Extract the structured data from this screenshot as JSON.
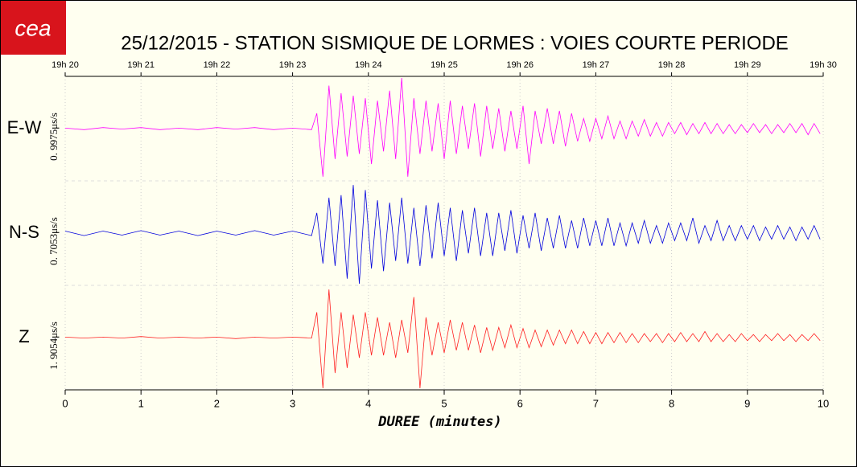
{
  "logo": "cea",
  "chart_data": {
    "type": "line",
    "title": "25/12/2015  -  STATION SISMIQUE DE LORMES : VOIES COURTE PERIODE",
    "xlabel": "DUREE (minutes)",
    "xlim": [
      0,
      10
    ],
    "xticks": [
      0,
      1,
      2,
      3,
      4,
      5,
      6,
      7,
      8,
      9,
      10
    ],
    "x2ticks": [
      {
        "value": 0,
        "label": "19h 20"
      },
      {
        "value": 1,
        "label": "19h 21"
      },
      {
        "value": 2,
        "label": "19h 22"
      },
      {
        "value": 3,
        "label": "19h 23"
      },
      {
        "value": 4,
        "label": "19h 24"
      },
      {
        "value": 5,
        "label": "19h 25"
      },
      {
        "value": 6,
        "label": "19h 26"
      },
      {
        "value": 7,
        "label": "19h 27"
      },
      {
        "value": 8,
        "label": "19h 28"
      },
      {
        "value": 9,
        "label": "19h 29"
      },
      {
        "value": 10,
        "label": "19h 30"
      }
    ],
    "ylim": [
      -1,
      1
    ],
    "grid": true,
    "x": [
      0,
      0.25,
      0.5,
      0.75,
      1,
      1.25,
      1.5,
      1.75,
      2,
      2.25,
      2.5,
      2.75,
      3,
      3.25,
      3.32,
      3.4,
      3.48,
      3.56,
      3.64,
      3.72,
      3.8,
      3.88,
      3.96,
      4.04,
      4.12,
      4.2,
      4.28,
      4.36,
      4.44,
      4.52,
      4.6,
      4.68,
      4.76,
      4.84,
      4.92,
      5,
      5.08,
      5.16,
      5.24,
      5.32,
      5.4,
      5.48,
      5.56,
      5.64,
      5.72,
      5.8,
      5.88,
      5.96,
      6.04,
      6.12,
      6.2,
      6.28,
      6.36,
      6.44,
      6.52,
      6.6,
      6.68,
      6.76,
      6.84,
      6.92,
      7,
      7.08,
      7.16,
      7.24,
      7.32,
      7.4,
      7.48,
      7.56,
      7.64,
      7.72,
      7.8,
      7.88,
      7.96,
      8.04,
      8.12,
      8.2,
      8.28,
      8.36,
      8.44,
      8.52,
      8.6,
      8.68,
      8.76,
      8.84,
      8.92,
      9,
      9.08,
      9.16,
      9.24,
      9.32,
      9.4,
      9.48,
      9.56,
      9.64,
      9.72,
      9.8,
      9.88,
      9.96
    ],
    "series": [
      {
        "name": "E-W",
        "scale": "0. 9975μs/s",
        "color": "#ff00ff",
        "values": [
          0.01,
          -0.02,
          0.02,
          -0.01,
          0.02,
          -0.02,
          0.01,
          -0.02,
          0.02,
          -0.01,
          0.02,
          -0.02,
          0.01,
          -0.02,
          0.3,
          -0.95,
          0.85,
          -0.6,
          0.7,
          -0.55,
          0.65,
          -0.5,
          0.6,
          -0.7,
          0.55,
          -0.45,
          0.75,
          -0.6,
          1.0,
          -0.95,
          0.6,
          -0.5,
          0.55,
          -0.45,
          0.5,
          -0.6,
          0.55,
          -0.5,
          0.45,
          -0.4,
          0.5,
          -0.55,
          0.45,
          -0.4,
          0.4,
          -0.45,
          0.35,
          -0.4,
          0.45,
          -0.7,
          0.35,
          -0.3,
          0.4,
          -0.3,
          0.35,
          -0.35,
          0.3,
          -0.25,
          0.2,
          -0.25,
          0.2,
          -0.2,
          0.25,
          -0.2,
          0.15,
          -0.2,
          0.15,
          -0.15,
          0.18,
          -0.15,
          0.12,
          -0.15,
          0.12,
          -0.1,
          0.12,
          -0.12,
          0.1,
          -0.1,
          0.12,
          -0.1,
          0.1,
          -0.1,
          0.08,
          -0.1,
          0.08,
          -0.08,
          0.1,
          -0.08,
          0.08,
          -0.1,
          0.08,
          -0.08,
          0.1,
          -0.08,
          0.1,
          -0.12,
          0.1,
          -0.1
        ]
      },
      {
        "name": "N-S",
        "scale": "0. 7053μs/s",
        "color": "#0000dd",
        "values": [
          0.04,
          -0.05,
          0.04,
          -0.04,
          0.05,
          -0.04,
          0.04,
          -0.05,
          0.04,
          -0.04,
          0.05,
          -0.04,
          0.04,
          -0.05,
          0.4,
          -0.6,
          0.7,
          -0.65,
          0.75,
          -0.9,
          0.95,
          -1.0,
          0.85,
          -0.7,
          0.65,
          -0.75,
          0.6,
          -0.55,
          0.7,
          -0.6,
          0.5,
          -0.65,
          0.55,
          -0.5,
          0.6,
          -0.45,
          0.5,
          -0.55,
          0.45,
          -0.4,
          0.5,
          -0.45,
          0.4,
          -0.45,
          0.4,
          -0.35,
          0.45,
          -0.4,
          0.35,
          -0.3,
          0.4,
          -0.35,
          0.3,
          -0.3,
          0.35,
          -0.3,
          0.25,
          -0.3,
          0.3,
          -0.25,
          0.25,
          -0.25,
          0.3,
          -0.25,
          0.2,
          -0.25,
          0.2,
          -0.2,
          0.25,
          -0.2,
          0.15,
          -0.2,
          0.2,
          -0.15,
          0.2,
          -0.15,
          0.3,
          -0.2,
          0.15,
          -0.15,
          0.25,
          -0.15,
          0.15,
          -0.15,
          0.15,
          -0.12,
          0.15,
          -0.15,
          0.12,
          -0.12,
          0.15,
          -0.12,
          0.12,
          -0.15,
          0.12,
          -0.12,
          0.15,
          -0.12
        ]
      },
      {
        "name": "Z",
        "scale": "1. 9054μs/s",
        "color": "#ff2020",
        "values": [
          0.01,
          -0.01,
          0.01,
          -0.01,
          0.02,
          -0.01,
          0.01,
          -0.01,
          0.01,
          -0.02,
          0.01,
          -0.01,
          0.01,
          -0.01,
          0.5,
          -1.0,
          0.95,
          -0.7,
          0.5,
          -0.6,
          0.45,
          -0.4,
          0.5,
          -0.35,
          0.4,
          -0.35,
          0.3,
          -0.4,
          0.35,
          -0.3,
          0.8,
          -1.0,
          0.4,
          -0.35,
          0.3,
          -0.3,
          0.35,
          -0.25,
          0.3,
          -0.25,
          0.25,
          -0.3,
          0.2,
          -0.25,
          0.2,
          -0.2,
          0.25,
          -0.2,
          0.18,
          -0.2,
          0.15,
          -0.18,
          0.15,
          -0.15,
          0.15,
          -0.12,
          0.15,
          -0.12,
          0.12,
          -0.12,
          0.1,
          -0.12,
          0.1,
          -0.1,
          0.1,
          -0.1,
          0.08,
          -0.1,
          0.08,
          -0.08,
          0.08,
          -0.1,
          0.08,
          -0.08,
          0.1,
          -0.08,
          0.08,
          -0.08,
          0.12,
          -0.08,
          0.08,
          -0.08,
          0.06,
          -0.08,
          0.08,
          -0.06,
          0.06,
          -0.08,
          0.06,
          -0.06,
          0.08,
          -0.06,
          0.06,
          -0.08,
          0.06,
          -0.06,
          0.08,
          -0.06
        ]
      }
    ]
  }
}
